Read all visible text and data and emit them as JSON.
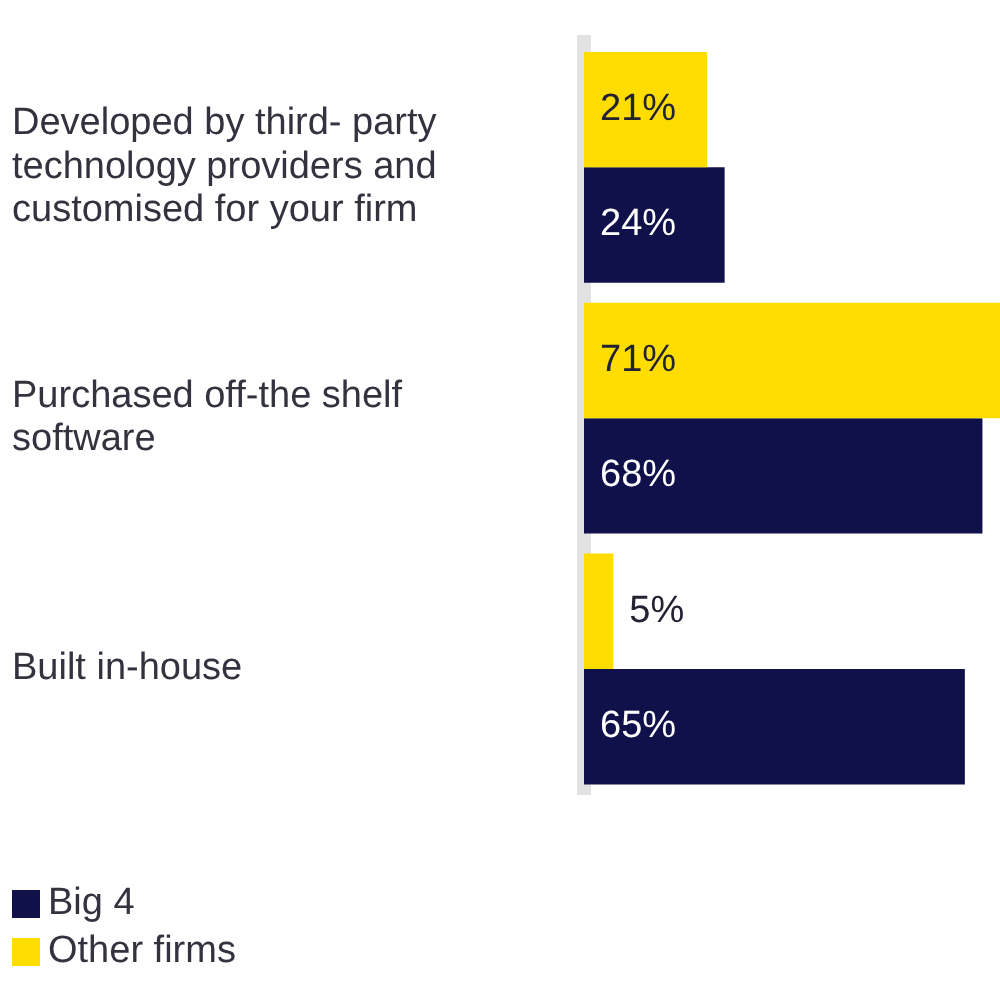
{
  "chart_data": {
    "type": "bar",
    "orientation": "horizontal",
    "categories": [
      "Developed by third- party technology providers and customised for your firm",
      "Purchased off-the shelf software",
      "Built in-house"
    ],
    "series": [
      {
        "name": "Other firms",
        "color": "#ffdd00",
        "values": [
          21,
          71,
          5
        ],
        "value_labels": [
          "21%",
          "71%",
          "5%"
        ]
      },
      {
        "name": "Big 4",
        "color": "#10104a",
        "values": [
          24,
          68,
          65
        ],
        "value_labels": [
          "24%",
          "68%",
          "65%"
        ]
      }
    ],
    "legend": "bottom left"
  }
}
